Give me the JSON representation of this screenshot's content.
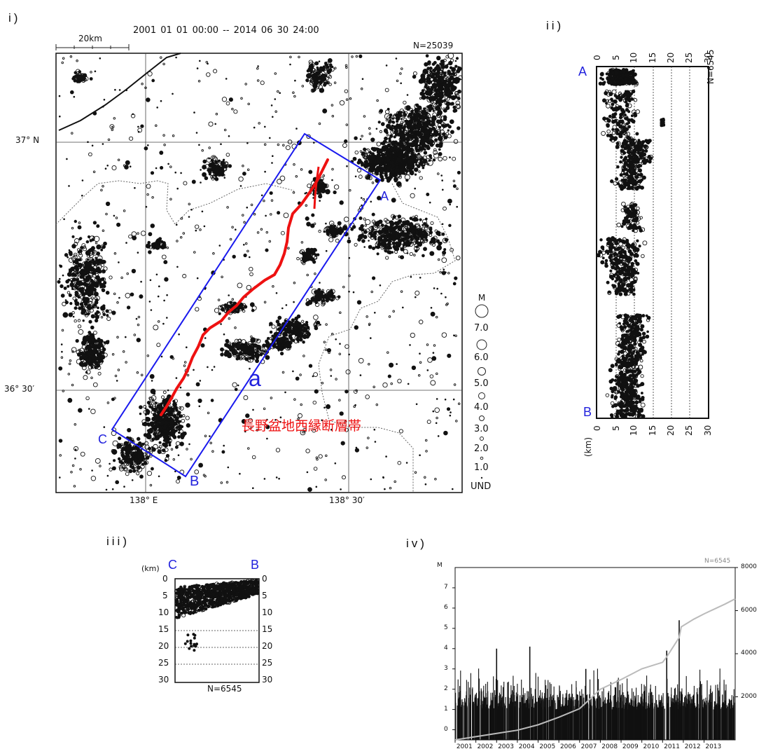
{
  "panels": {
    "i": "i)",
    "ii": "ii)",
    "iii": "iii)",
    "iv": "iv)"
  },
  "map": {
    "period": "2001 01 01 00:00 -- 2014 06 30 24:00",
    "n_label": "N=25039",
    "scale_label": "20km",
    "lat_labels": [
      "37° N",
      "36° 30′"
    ],
    "lon_labels": [
      "138° E",
      "138° 30′"
    ],
    "corner_labels": {
      "A": "A",
      "B": "B",
      "C": "C",
      "a": "a"
    },
    "fault_name": "長野盆地西縁断層帯",
    "magnitude_legend": {
      "title": "M",
      "levels": [
        "7.0",
        "6.0",
        "5.0",
        "4.0",
        "3.0",
        "2.0",
        "1.0",
        "UND"
      ]
    },
    "colors": {
      "box": "#1a1aee",
      "fault": "#ee1111",
      "quakes": "#111111"
    }
  },
  "depth_section": {
    "n_label": "N=6545",
    "top_label": "A",
    "bottom_label": "B",
    "axis_label": "(km)",
    "ticks": [
      "0",
      "5",
      "10",
      "15",
      "20",
      "25",
      "30"
    ]
  },
  "cross_section": {
    "left_label": "C",
    "right_label": "B",
    "unit": "(km)",
    "ticks": [
      "0",
      "5",
      "10",
      "15",
      "20",
      "25",
      "30"
    ],
    "n_label": "N=6545"
  },
  "chart_data": {
    "type": "scatter",
    "n_label": "N=6545",
    "left_axis_title": "M",
    "left_ticks": [
      "0",
      "1",
      "2",
      "3",
      "4",
      "5",
      "6",
      "7"
    ],
    "right_ticks": [
      "2000",
      "4000",
      "6000",
      "8000"
    ],
    "x_ticks": [
      "2001",
      "2002",
      "2003",
      "2004",
      "2005",
      "2006",
      "2007",
      "2008",
      "2009",
      "2010",
      "2011",
      "2012",
      "2013"
    ],
    "xlim": [
      2001,
      2014.5
    ],
    "ylim_magnitude": [
      -0.5,
      8
    ],
    "ylim_count": [
      0,
      8000
    ],
    "peak_events": [
      {
        "year": 2003.0,
        "magnitude": 4.0
      },
      {
        "year": 2004.6,
        "magnitude": 4.1
      },
      {
        "year": 2007.3,
        "magnitude": 3.0
      },
      {
        "year": 2011.2,
        "magnitude": 3.9
      },
      {
        "year": 2011.8,
        "magnitude": 5.4
      }
    ],
    "cumulative": {
      "x": [
        2001.0,
        2002.0,
        2003.0,
        2004.0,
        2005.0,
        2006.0,
        2007.0,
        2007.5,
        2008.0,
        2009.0,
        2010.0,
        2011.0,
        2011.2,
        2011.8,
        2011.9,
        2012.5,
        2013.0,
        2014.0,
        2014.5
      ],
      "y": [
        0,
        150,
        300,
        450,
        700,
        1050,
        1450,
        1900,
        2350,
        2800,
        3300,
        3600,
        3850,
        4750,
        5250,
        5600,
        5850,
        6300,
        6545
      ]
    }
  }
}
